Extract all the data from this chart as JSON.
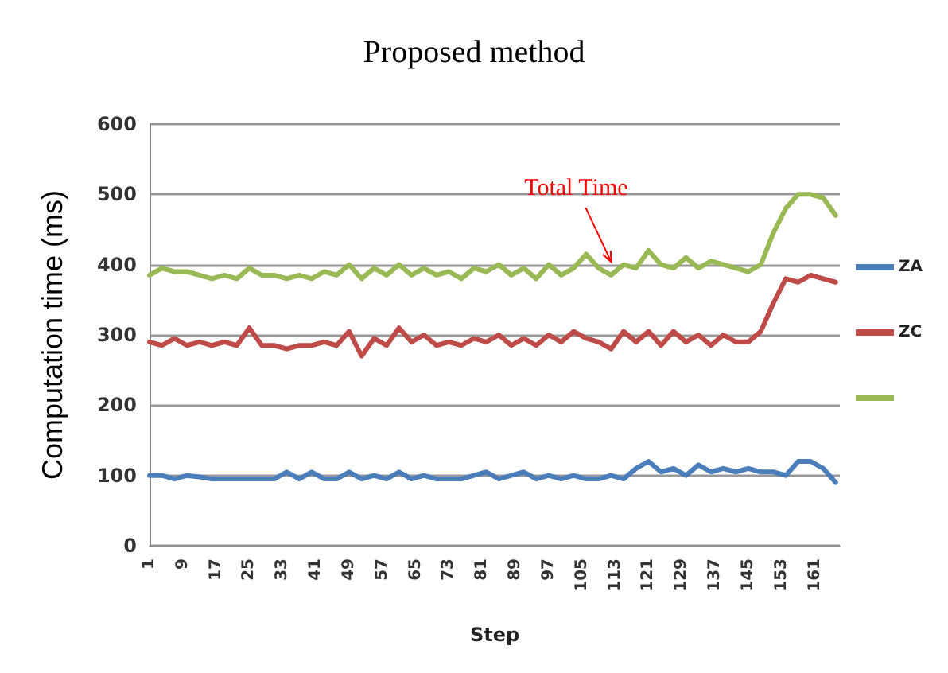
{
  "chart_data": {
    "type": "line",
    "title": "Proposed method",
    "xlabel": "Step",
    "ylabel": "Computation time (ms)",
    "x": [
      1,
      4,
      7,
      10,
      13,
      16,
      19,
      22,
      25,
      28,
      31,
      34,
      37,
      40,
      43,
      46,
      49,
      52,
      55,
      58,
      61,
      64,
      67,
      70,
      73,
      76,
      79,
      82,
      85,
      88,
      91,
      94,
      97,
      100,
      103,
      106,
      109,
      112,
      115,
      118,
      121,
      124,
      127,
      130,
      133,
      136,
      139,
      142,
      145,
      148,
      151,
      154,
      157,
      160,
      163,
      166
    ],
    "series": [
      {
        "name": "ZA",
        "color": "#4a7ebb",
        "values": [
          100,
          100,
          95,
          100,
          98,
          95,
          95,
          95,
          95,
          95,
          95,
          105,
          95,
          105,
          95,
          95,
          105,
          95,
          100,
          95,
          105,
          95,
          100,
          95,
          95,
          95,
          100,
          105,
          95,
          100,
          105,
          95,
          100,
          95,
          100,
          95,
          95,
          100,
          95,
          110,
          120,
          105,
          110,
          100,
          115,
          105,
          110,
          105,
          110,
          105,
          105,
          100,
          120,
          120,
          110,
          90
        ]
      },
      {
        "name": "ZC",
        "color": "#be4b48",
        "values": [
          290,
          285,
          295,
          285,
          290,
          285,
          290,
          285,
          310,
          285,
          285,
          280,
          285,
          285,
          290,
          285,
          305,
          270,
          295,
          285,
          310,
          290,
          300,
          285,
          290,
          285,
          295,
          290,
          300,
          285,
          295,
          285,
          300,
          290,
          305,
          295,
          290,
          280,
          305,
          290,
          305,
          285,
          305,
          290,
          300,
          285,
          300,
          290,
          290,
          305,
          345,
          380,
          375,
          385,
          380,
          375
        ]
      },
      {
        "color": "#98b954",
        "values": [
          385,
          395,
          390,
          390,
          385,
          380,
          385,
          380,
          395,
          385,
          385,
          380,
          385,
          380,
          390,
          385,
          400,
          380,
          395,
          385,
          400,
          385,
          395,
          385,
          390,
          380,
          395,
          390,
          400,
          385,
          395,
          380,
          400,
          385,
          395,
          415,
          395,
          385,
          400,
          395,
          420,
          400,
          395,
          410,
          395,
          405,
          400,
          395,
          390,
          400,
          445,
          480,
          500,
          500,
          495,
          470
        ]
      }
    ],
    "xlim": [
      1,
      167
    ],
    "xticks": [
      1,
      9,
      17,
      25,
      33,
      41,
      49,
      57,
      65,
      73,
      81,
      89,
      97,
      105,
      113,
      121,
      129,
      137,
      145,
      153,
      161
    ],
    "ylim": [
      0,
      600
    ],
    "yticks": [
      0,
      100,
      200,
      300,
      400,
      500,
      600
    ],
    "grid": "y",
    "legend": "right",
    "marker": "none",
    "line_style": "solid",
    "annotations": [
      {
        "text": "Total Time",
        "x": 112,
        "y": 395
      }
    ]
  }
}
